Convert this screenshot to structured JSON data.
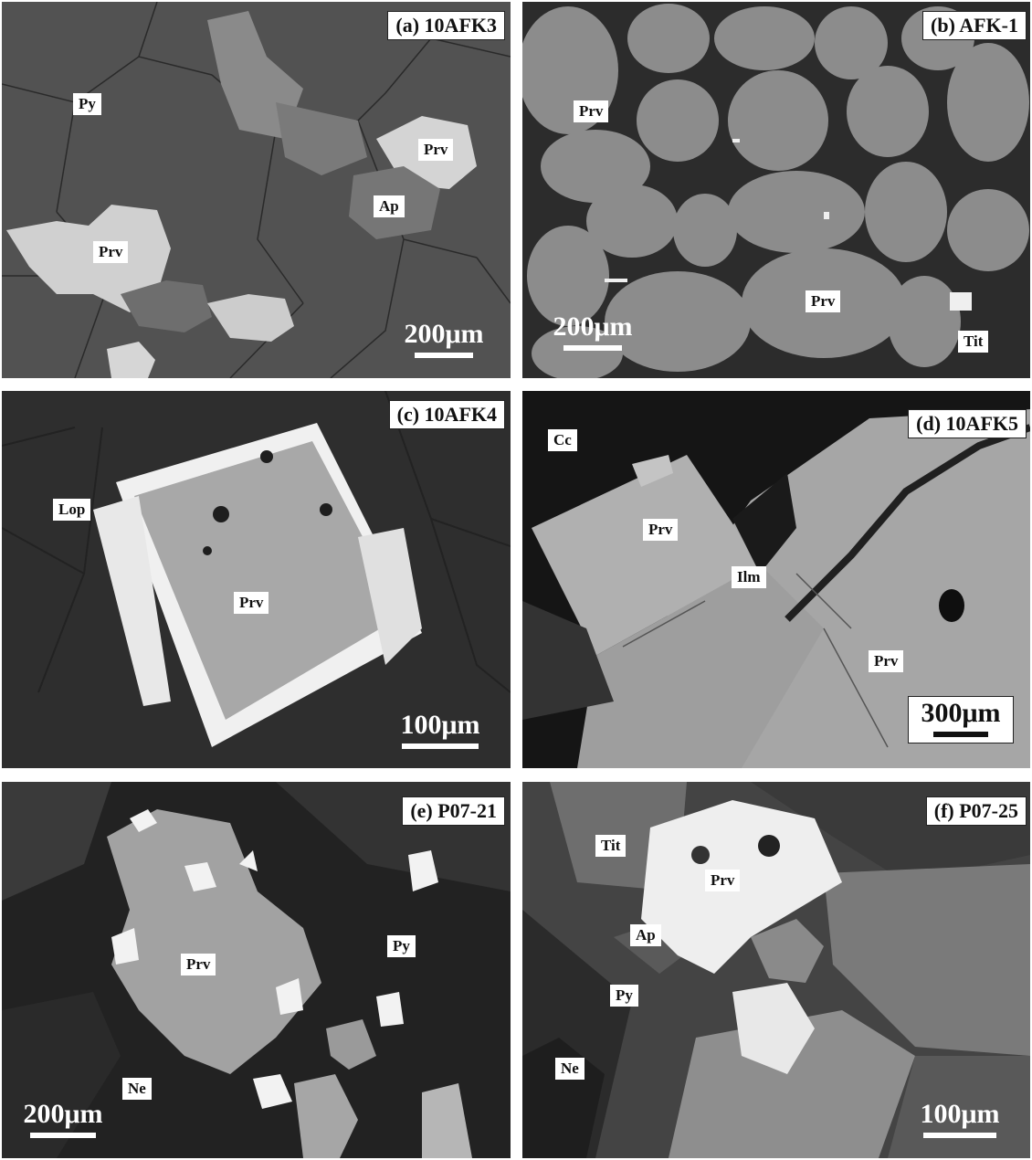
{
  "panels": [
    {
      "id": "a",
      "title": "(a) 10AFK3",
      "labels": [
        "Py",
        "Prv",
        "Ap",
        "Prv"
      ],
      "scale": "200μm"
    },
    {
      "id": "b",
      "title": "(b) AFK-1",
      "labels": [
        "Prv",
        "Prv",
        "Tit"
      ],
      "scale": "200μm"
    },
    {
      "id": "c",
      "title": "(c) 10AFK4",
      "labels": [
        "Lop",
        "Prv"
      ],
      "scale": "100μm"
    },
    {
      "id": "d",
      "title": "(d) 10AFK5",
      "labels": [
        "Cc",
        "Prv",
        "Ilm",
        "Prv"
      ],
      "scale": "300μm"
    },
    {
      "id": "e",
      "title": "(e) P07-21",
      "labels": [
        "Prv",
        "Py",
        "Ne"
      ],
      "scale": "200μm"
    },
    {
      "id": "f",
      "title": "(f) P07-25",
      "labels": [
        "Tit",
        "Prv",
        "Ap",
        "Py",
        "Ne"
      ],
      "scale": "100μm"
    }
  ]
}
